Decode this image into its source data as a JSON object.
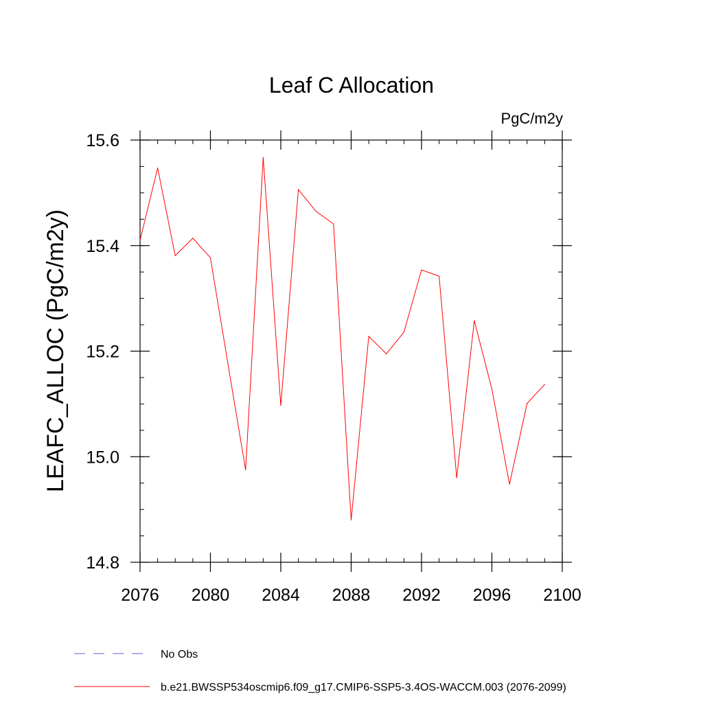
{
  "chart_data": {
    "type": "line",
    "title": "Leaf C Allocation",
    "units_label": "PgC/m2y",
    "xlabel": "",
    "ylabel": "LEAFC_ALLOC  (PgC/m2y)",
    "xlim": [
      2076,
      2100
    ],
    "ylim": [
      14.8,
      15.6
    ],
    "xticks": [
      2076,
      2080,
      2084,
      2088,
      2092,
      2096,
      2100
    ],
    "xtick_labels": [
      "2076",
      "2080",
      "2084",
      "2088",
      "2092",
      "2096",
      "2100"
    ],
    "yticks": [
      14.8,
      15.0,
      15.2,
      15.4,
      15.6
    ],
    "ytick_labels": [
      "14.8",
      "15.0",
      "15.2",
      "15.4",
      "15.6"
    ],
    "y_minor_step": 0.05,
    "x_minor_step": 1,
    "grid": false,
    "legend_position": "bottom-left",
    "series": [
      {
        "name": "No Obs",
        "color": "#6a5acd",
        "dash": "dashed",
        "x": [],
        "values": []
      },
      {
        "name": "b.e21.BWSSP534oscmip6.f09_g17.CMIP6-SSP5-3.4OS-WACCM.003 (2076-2099)",
        "color": "#ff0000",
        "dash": "solid",
        "x": [
          2076,
          2077,
          2078,
          2079,
          2080,
          2081,
          2082,
          2083,
          2084,
          2085,
          2086,
          2087,
          2088,
          2089,
          2090,
          2091,
          2092,
          2093,
          2094,
          2095,
          2096,
          2097,
          2098,
          2099
        ],
        "values": [
          15.41,
          15.547,
          15.381,
          15.414,
          15.377,
          15.175,
          14.975,
          15.567,
          15.097,
          15.506,
          15.465,
          15.441,
          14.88,
          15.228,
          15.195,
          15.236,
          15.354,
          15.342,
          14.96,
          15.258,
          15.128,
          14.948,
          15.101,
          15.137
        ]
      }
    ]
  }
}
